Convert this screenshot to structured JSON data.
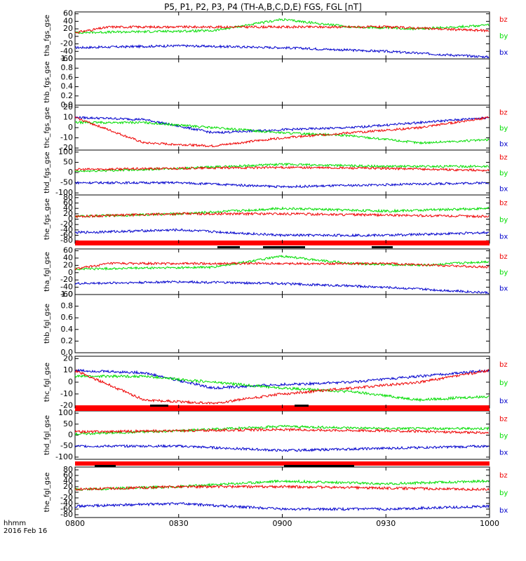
{
  "chart_data": {
    "type": "line",
    "title": "P5, P1, P2, P3, P4 (TH-A,B,C,D,E) FGS, FGL [nT]",
    "x_axis": {
      "ticks": [
        "0800",
        "0830",
        "0900",
        "0930",
        "1000"
      ],
      "label_hhmm": "hhmm",
      "date": "2016 Feb 16",
      "range": [
        "08:00",
        "10:00"
      ]
    },
    "colors": {
      "bx": "#0000cc",
      "by": "#00dd00",
      "bz": "#ee0000",
      "flag": "#ff0000"
    },
    "panels": [
      {
        "id": "tha_fgs",
        "ylabel": "tha_fgs_gse",
        "yticks": [
          "60",
          "40",
          "20",
          "0",
          "-20",
          "-40",
          "-60"
        ],
        "ylim": [
          -60,
          65
        ],
        "legend": [
          "bz",
          "by",
          "bx"
        ],
        "series": {
          "bx": {
            "times": [
              0,
              30,
              60,
              90,
              110,
              120
            ],
            "values": [
              -30,
              -25,
              -30,
              -40,
              -50,
              -55
            ]
          },
          "by": {
            "times": [
              0,
              40,
              50,
              60,
              80,
              100,
              120
            ],
            "values": [
              10,
              15,
              30,
              45,
              25,
              20,
              30
            ]
          },
          "bz": {
            "times": [
              0,
              10,
              30,
              60,
              90,
              120
            ],
            "values": [
              10,
              25,
              25,
              25,
              25,
              15
            ]
          }
        },
        "flags": []
      },
      {
        "id": "thb_fgs",
        "ylabel": "thb_fgs_gse",
        "yticks": [
          "1.0",
          "0.8",
          "0.6",
          "0.4",
          "0.2",
          "0.0"
        ],
        "ylim": [
          0,
          1
        ],
        "legend": [],
        "series": {},
        "flags": []
      },
      {
        "id": "thc_fgs",
        "ylabel": "thc_fgs_gse",
        "yticks": [
          "20",
          "10",
          "0",
          "-10",
          "-20"
        ],
        "ylim": [
          -22,
          22
        ],
        "legend": [
          "bz",
          "by",
          "bx"
        ],
        "series": {
          "bx": {
            "times": [
              0,
              20,
              40,
              60,
              80,
              100,
              120
            ],
            "values": [
              10,
              8,
              -5,
              -2,
              0,
              5,
              10
            ]
          },
          "by": {
            "times": [
              0,
              20,
              40,
              60,
              80,
              100,
              120
            ],
            "values": [
              5,
              5,
              0,
              -5,
              -8,
              -15,
              -12
            ]
          },
          "bz": {
            "times": [
              0,
              20,
              40,
              60,
              80,
              100,
              120
            ],
            "values": [
              10,
              -15,
              -18,
              -10,
              -5,
              0,
              10
            ]
          }
        },
        "flags": []
      },
      {
        "id": "thd_fgs",
        "ylabel": "thd_fgs_gse",
        "yticks": [
          "100",
          "50",
          "0",
          "-50",
          "-100"
        ],
        "ylim": [
          -110,
          110
        ],
        "legend": [
          "bz",
          "by",
          "bx"
        ],
        "series": {
          "bx": {
            "times": [
              0,
              30,
              60,
              90,
              120
            ],
            "values": [
              -50,
              -50,
              -70,
              -60,
              -50
            ]
          },
          "by": {
            "times": [
              0,
              30,
              60,
              90,
              120
            ],
            "values": [
              5,
              20,
              40,
              30,
              30
            ]
          },
          "bz": {
            "times": [
              0,
              30,
              60,
              90,
              120
            ],
            "values": [
              15,
              20,
              25,
              20,
              10
            ]
          }
        },
        "flags": []
      },
      {
        "id": "the_fgs",
        "ylabel": "the_fgs_gse",
        "yticks": [
          "80",
          "60",
          "40",
          "20",
          "0",
          "-20",
          "-40",
          "-60",
          "-80"
        ],
        "ylim": [
          -90,
          90
        ],
        "legend": [
          "bz",
          "by",
          "bx"
        ],
        "series": {
          "bx": {
            "times": [
              0,
              30,
              60,
              90,
              120
            ],
            "values": [
              -50,
              -40,
              -60,
              -60,
              -50
            ]
          },
          "by": {
            "times": [
              0,
              30,
              60,
              90,
              120
            ],
            "values": [
              10,
              20,
              40,
              30,
              40
            ]
          },
          "bz": {
            "times": [
              0,
              30,
              60,
              90,
              120
            ],
            "values": [
              10,
              20,
              20,
              15,
              10
            ]
          }
        },
        "flags": [
          "red"
        ]
      },
      {
        "id": "tha_fgl",
        "ylabel": "tha_fgl_gse",
        "yticks": [
          "60",
          "40",
          "20",
          "0",
          "-20",
          "-40",
          "-60"
        ],
        "ylim": [
          -60,
          65
        ],
        "legend": [
          "bz",
          "by",
          "bx"
        ],
        "series": {
          "bx": {
            "times": [
              0,
              30,
              60,
              90,
              110,
              120
            ],
            "values": [
              -30,
              -25,
              -30,
              -40,
              -50,
              -55
            ]
          },
          "by": {
            "times": [
              0,
              40,
              50,
              60,
              80,
              100,
              120
            ],
            "values": [
              10,
              15,
              30,
              45,
              25,
              20,
              30
            ]
          },
          "bz": {
            "times": [
              0,
              10,
              30,
              60,
              90,
              120
            ],
            "values": [
              10,
              25,
              25,
              25,
              25,
              15
            ]
          }
        },
        "flags": [
          "black",
          "red"
        ]
      },
      {
        "id": "thb_fgl",
        "ylabel": "thb_fgl_gse",
        "yticks": [
          "1.0",
          "0.8",
          "0.6",
          "0.4",
          "0.2",
          "0.0"
        ],
        "ylim": [
          0,
          1
        ],
        "legend": [],
        "series": {},
        "flags": []
      },
      {
        "id": "thc_fgl",
        "ylabel": "thc_fgl_gse",
        "yticks": [
          "20",
          "10",
          "0",
          "-10",
          "-20"
        ],
        "ylim": [
          -22,
          22
        ],
        "legend": [
          "bz",
          "by",
          "bx"
        ],
        "series": {
          "bx": {
            "times": [
              0,
              20,
              40,
              60,
              80,
              100,
              120
            ],
            "values": [
              10,
              8,
              -5,
              -2,
              0,
              5,
              10
            ]
          },
          "by": {
            "times": [
              0,
              20,
              40,
              60,
              80,
              100,
              120
            ],
            "values": [
              5,
              5,
              0,
              -5,
              -8,
              -15,
              -12
            ]
          },
          "bz": {
            "times": [
              0,
              20,
              40,
              60,
              80,
              100,
              120
            ],
            "values": [
              10,
              -15,
              -18,
              -10,
              -5,
              0,
              10
            ]
          }
        },
        "flags": [
          "red"
        ]
      },
      {
        "id": "thd_fgl",
        "ylabel": "thd_fgl_gse",
        "yticks": [
          "100",
          "50",
          "0",
          "-50",
          "-100"
        ],
        "ylim": [
          -110,
          110
        ],
        "legend": [
          "bz",
          "by",
          "bx"
        ],
        "series": {
          "bx": {
            "times": [
              0,
              30,
              60,
              90,
              120
            ],
            "values": [
              -50,
              -50,
              -70,
              -60,
              -50
            ]
          },
          "by": {
            "times": [
              0,
              30,
              60,
              90,
              120
            ],
            "values": [
              5,
              20,
              40,
              30,
              30
            ]
          },
          "bz": {
            "times": [
              0,
              30,
              60,
              90,
              120
            ],
            "values": [
              15,
              20,
              25,
              20,
              10
            ]
          }
        },
        "flags": [
          "black",
          "red"
        ]
      },
      {
        "id": "the_fgl",
        "ylabel": "the_fgl_gse",
        "yticks": [
          "80",
          "60",
          "40",
          "20",
          "0",
          "-20",
          "-40",
          "-60",
          "-80"
        ],
        "ylim": [
          -90,
          90
        ],
        "legend": [
          "bz",
          "by",
          "bx"
        ],
        "series": {
          "bx": {
            "times": [
              0,
              30,
              60,
              90,
              120
            ],
            "values": [
              -50,
              -40,
              -60,
              -60,
              -50
            ]
          },
          "by": {
            "times": [
              0,
              30,
              60,
              90,
              120
            ],
            "values": [
              10,
              20,
              40,
              30,
              40
            ]
          },
          "bz": {
            "times": [
              0,
              30,
              60,
              90,
              120
            ],
            "values": [
              10,
              20,
              20,
              15,
              10
            ]
          }
        },
        "flags": [
          "red",
          "black"
        ]
      }
    ]
  }
}
